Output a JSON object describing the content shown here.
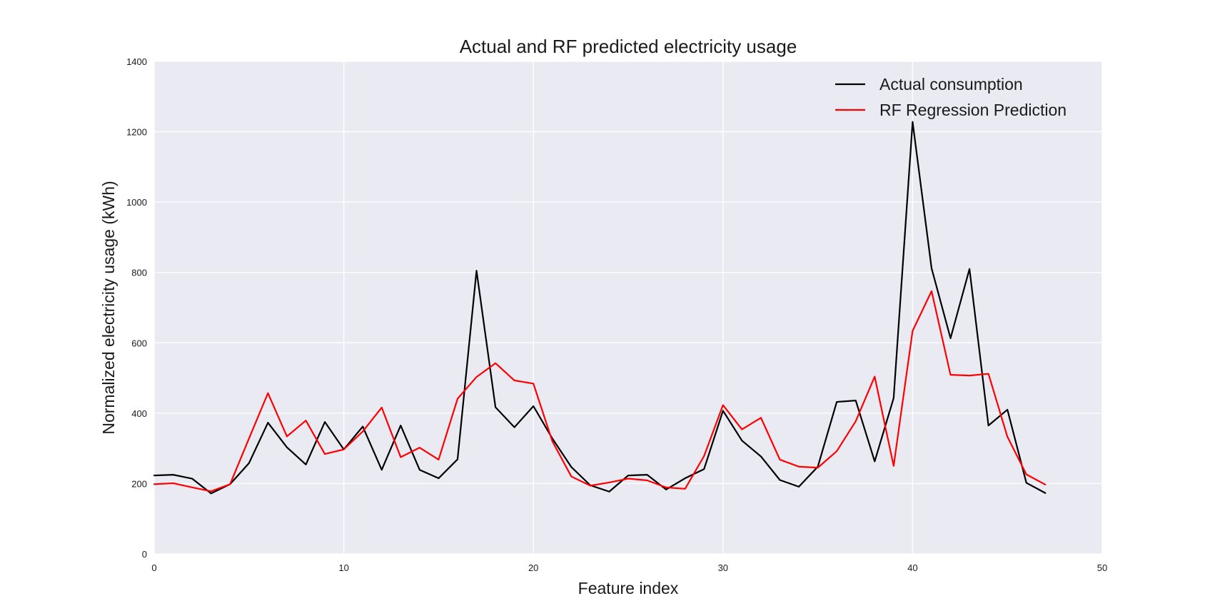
{
  "chart_data": {
    "type": "line",
    "title": "Actual and RF predicted electricity usage",
    "xlabel": "Feature index",
    "ylabel": "Normalized electricity usage (kWh)",
    "xlim": [
      0,
      50
    ],
    "ylim": [
      0,
      1400
    ],
    "x_ticks": [
      0,
      10,
      20,
      30,
      40,
      50
    ],
    "y_ticks": [
      0,
      200,
      400,
      600,
      800,
      1000,
      1200,
      1400
    ],
    "grid": true,
    "legend_position": "top-right",
    "background_color": "#eaeaf2",
    "grid_color": "#ffffff",
    "series": [
      {
        "name": "Actual consumption",
        "color": "#000000",
        "x": [
          0,
          1,
          2,
          3,
          4,
          5,
          6,
          7,
          8,
          9,
          10,
          11,
          12,
          13,
          14,
          15,
          16,
          17,
          18,
          19,
          20,
          21,
          22,
          23,
          24,
          25,
          26,
          27,
          28,
          29,
          30,
          31,
          32,
          33,
          34,
          35,
          36,
          37,
          38,
          39,
          40,
          41,
          42,
          43,
          44,
          45,
          46,
          47
        ],
        "values": [
          223,
          225,
          214,
          172,
          198,
          258,
          373,
          303,
          254,
          375,
          297,
          362,
          239,
          365,
          239,
          215,
          269,
          805,
          417,
          360,
          420,
          328,
          247,
          195,
          177,
          223,
          225,
          183,
          215,
          241,
          407,
          322,
          277,
          210,
          191,
          248,
          432,
          436,
          263,
          443,
          1228,
          812,
          613,
          810,
          365,
          410,
          202,
          173
        ]
      },
      {
        "name": "RF Regression Prediction",
        "color": "#ff0000",
        "x": [
          0,
          1,
          2,
          3,
          4,
          5,
          6,
          7,
          8,
          9,
          10,
          11,
          12,
          13,
          14,
          15,
          16,
          17,
          18,
          19,
          20,
          21,
          22,
          23,
          24,
          25,
          26,
          27,
          28,
          29,
          30,
          31,
          32,
          33,
          34,
          35,
          36,
          37,
          38,
          39,
          40,
          41,
          42,
          43,
          44,
          45,
          46,
          47
        ],
        "values": [
          198,
          201,
          189,
          178,
          198,
          328,
          457,
          334,
          379,
          284,
          297,
          348,
          416,
          275,
          302,
          268,
          441,
          503,
          542,
          493,
          484,
          320,
          220,
          194,
          203,
          214,
          209,
          189,
          185,
          278,
          423,
          354,
          387,
          268,
          248,
          245,
          292,
          377,
          504,
          250,
          634,
          747,
          509,
          507,
          512,
          333,
          226,
          197
        ]
      }
    ]
  }
}
